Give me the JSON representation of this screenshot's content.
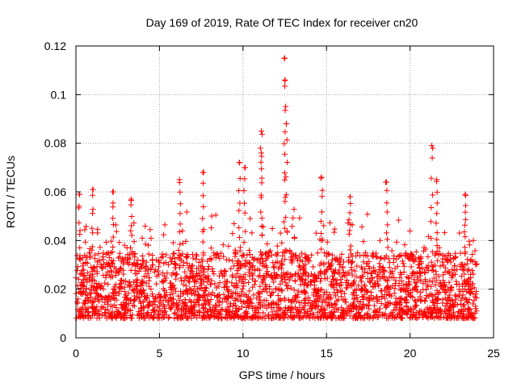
{
  "chart_data": {
    "type": "scatter",
    "title": "Day 169 of 2019, Rate Of TEC Index for receiver cn20",
    "xlabel": "GPS time / hours",
    "ylabel": "ROTI / TECUs",
    "xlim": [
      0,
      25
    ],
    "ylim": [
      0,
      0.12
    ],
    "x_ticks": [
      0,
      5,
      10,
      15,
      20,
      25
    ],
    "x_tick_labels": [
      "0",
      "5",
      "10",
      "15",
      "20",
      "25"
    ],
    "y_ticks": [
      0,
      0.02,
      0.04,
      0.06,
      0.08,
      0.1,
      0.12
    ],
    "y_tick_labels": [
      "0",
      "0.02",
      "0.04",
      "0.06",
      "0.08",
      "0.1",
      "0.12"
    ],
    "grid": true,
    "marker": "+",
    "series": [
      {
        "name": "ROTI",
        "color": "#ff0000",
        "x_range": [
          0,
          24
        ],
        "typical_band": [
          0.008,
          0.035
        ],
        "peaks": [
          {
            "x": 0.2,
            "y": 0.059
          },
          {
            "x": 1.0,
            "y": 0.061
          },
          {
            "x": 2.2,
            "y": 0.06
          },
          {
            "x": 3.3,
            "y": 0.057
          },
          {
            "x": 6.2,
            "y": 0.065
          },
          {
            "x": 7.6,
            "y": 0.068
          },
          {
            "x": 9.8,
            "y": 0.072
          },
          {
            "x": 10.1,
            "y": 0.07
          },
          {
            "x": 11.1,
            "y": 0.085
          },
          {
            "x": 11.1,
            "y": 0.076
          },
          {
            "x": 12.5,
            "y": 0.115
          },
          {
            "x": 12.5,
            "y": 0.106
          },
          {
            "x": 12.6,
            "y": 0.088
          },
          {
            "x": 14.7,
            "y": 0.066
          },
          {
            "x": 16.4,
            "y": 0.058
          },
          {
            "x": 18.6,
            "y": 0.064
          },
          {
            "x": 21.3,
            "y": 0.079
          },
          {
            "x": 21.6,
            "y": 0.065
          },
          {
            "x": 23.3,
            "y": 0.059
          }
        ]
      }
    ]
  }
}
